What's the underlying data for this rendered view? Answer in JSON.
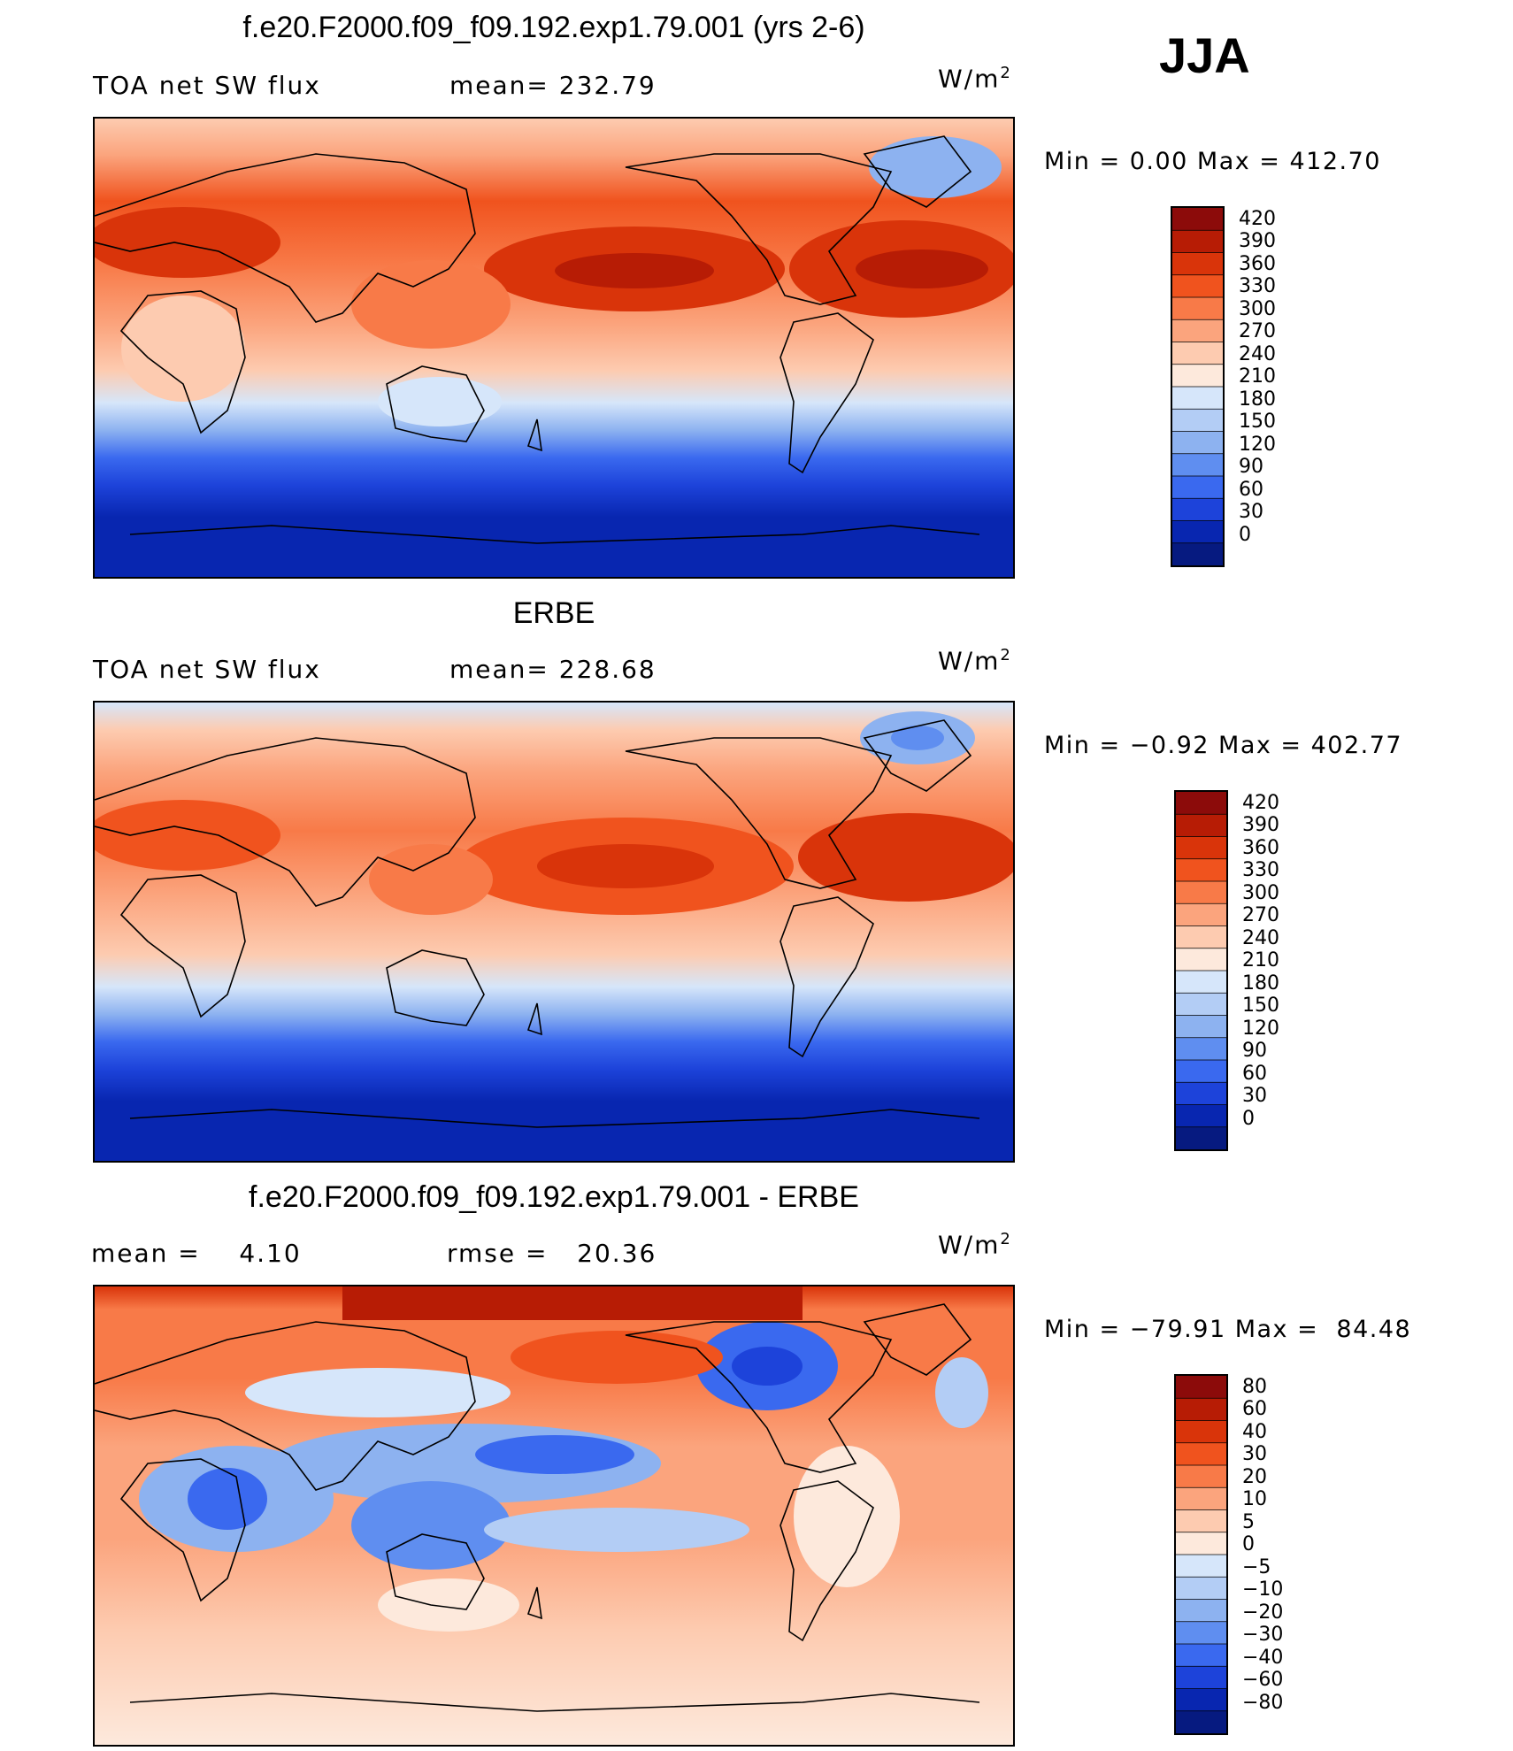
{
  "season": "JJA",
  "chart_data": [
    {
      "type": "heatmap",
      "title": "f.e20.F2000.f09_f09.192.exp1.79.001 (yrs 2-6)",
      "variable_label": "TOA net SW flux",
      "stat_label": "mean= 232.79",
      "units_base": "W/m",
      "units_exp": "2",
      "min_max_label": "Min =    0.00 Max = 412.70",
      "colorbar_levels": [
        "420",
        "390",
        "360",
        "330",
        "300",
        "270",
        "240",
        "210",
        "180",
        "150",
        "120",
        "90",
        "60",
        "30",
        "0"
      ],
      "colorbar_colors": [
        "#8c0b0a",
        "#b71c05",
        "#d9340a",
        "#f0531e",
        "#f87a48",
        "#fba47d",
        "#fdcbb0",
        "#fde9dc",
        "#d6e6fa",
        "#b3cdf5",
        "#8db2f0",
        "#5f8ef0",
        "#3a69ef",
        "#1d43da",
        "#0826b0",
        "#061a80"
      ]
    },
    {
      "type": "heatmap",
      "title": "ERBE",
      "variable_label": "TOA net SW flux",
      "stat_label": "mean= 228.68",
      "units_base": "W/m",
      "units_exp": "2",
      "min_max_label": "Min =  −0.92 Max = 402.77",
      "colorbar_levels": [
        "420",
        "390",
        "360",
        "330",
        "300",
        "270",
        "240",
        "210",
        "180",
        "150",
        "120",
        "90",
        "60",
        "30",
        "0"
      ],
      "colorbar_colors": [
        "#8c0b0a",
        "#b71c05",
        "#d9340a",
        "#f0531e",
        "#f87a48",
        "#fba47d",
        "#fdcbb0",
        "#fde9dc",
        "#d6e6fa",
        "#b3cdf5",
        "#8db2f0",
        "#5f8ef0",
        "#3a69ef",
        "#1d43da",
        "#0826b0",
        "#061a80"
      ]
    },
    {
      "type": "heatmap",
      "title": "f.e20.F2000.f09_f09.192.exp1.79.001 - ERBE",
      "mean_label": "mean =    4.10",
      "rmse_label": "rmse =   20.36",
      "units_base": "W/m",
      "units_exp": "2",
      "min_max_label": "Min = −79.91 Max =  84.48",
      "colorbar_levels": [
        "80",
        "60",
        "40",
        "30",
        "20",
        "10",
        "5",
        "0",
        "−5",
        "−10",
        "−20",
        "−30",
        "−40",
        "−60",
        "−80"
      ],
      "colorbar_colors": [
        "#8c0b0a",
        "#b71c05",
        "#d9340a",
        "#f0531e",
        "#f87a48",
        "#fba47d",
        "#fdcbb0",
        "#fde9dc",
        "#d6e6fa",
        "#b3cdf5",
        "#8db2f0",
        "#5f8ef0",
        "#3a69ef",
        "#1d43da",
        "#0826b0",
        "#061a80"
      ]
    }
  ]
}
